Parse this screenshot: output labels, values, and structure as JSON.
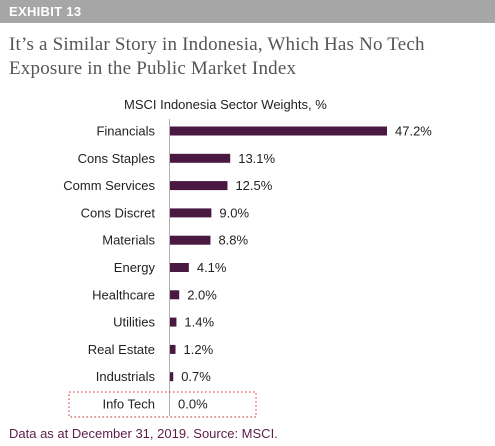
{
  "header": {
    "exhibit": "EXHIBIT 13"
  },
  "title": "It’s a Similar Story in Indonesia, Which Has No Tech Exposure in the Public Market Index",
  "source": "Data as at December 31, 2019. Source: MSCI.",
  "colors": {
    "bar": "#4a1942",
    "highlight_border": "#d9534f",
    "axis": "#b0b0b0",
    "header_bg": "#a6a6a6"
  },
  "chart_data": {
    "type": "bar",
    "orientation": "horizontal",
    "title": "MSCI Indonesia Sector Weights, %",
    "categories": [
      "Financials",
      "Cons Staples",
      "Comm Services",
      "Cons Discret",
      "Materials",
      "Energy",
      "Healthcare",
      "Utilities",
      "Real Estate",
      "Industrials",
      "Info Tech"
    ],
    "values": [
      47.2,
      13.1,
      12.5,
      9.0,
      8.8,
      4.1,
      2.0,
      1.4,
      1.2,
      0.7,
      0.0
    ],
    "value_labels": [
      "47.2%",
      "13.1%",
      "12.5%",
      "9.0%",
      "8.8%",
      "4.1%",
      "2.0%",
      "1.4%",
      "1.2%",
      "0.7%",
      "0.0%"
    ],
    "highlighted_category": "Info Tech",
    "xlim": [
      0,
      47.2
    ],
    "grid": false
  }
}
